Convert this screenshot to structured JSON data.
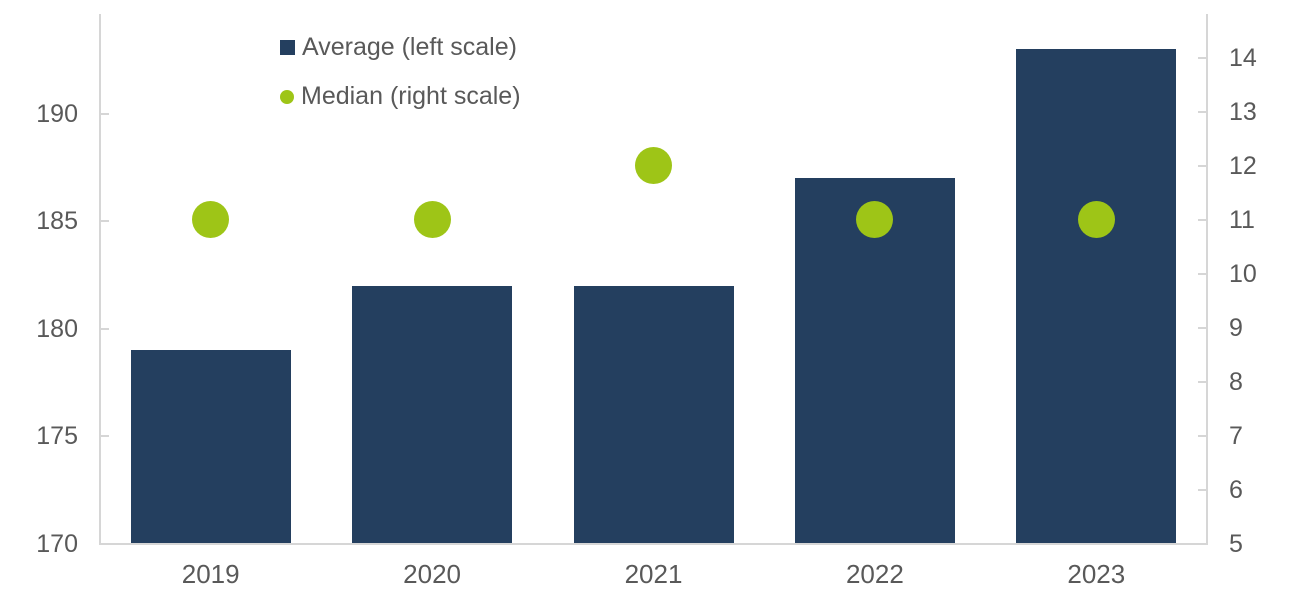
{
  "colors": {
    "bar": "#243F5F",
    "dot": "#9EC517",
    "axis_line": "#D6D6D6",
    "text": "#595959"
  },
  "chart_data": {
    "type": "bar",
    "categories": [
      "2019",
      "2020",
      "2021",
      "2022",
      "2023"
    ],
    "series": [
      {
        "name": "Average (left scale)",
        "type": "bar",
        "axis": "left",
        "color": "#243F5F",
        "values": [
          179,
          182,
          182,
          187,
          193
        ]
      },
      {
        "name": "Median (right scale)",
        "type": "scatter",
        "axis": "right",
        "color": "#9EC517",
        "values": [
          11,
          11,
          12,
          11,
          11
        ]
      }
    ],
    "left_axis": {
      "tick_labels": [
        170,
        175,
        180,
        185,
        190
      ],
      "min": 170,
      "max": 194.65
    },
    "right_axis": {
      "tick_labels": [
        5,
        6,
        7,
        8,
        9,
        10,
        11,
        12,
        13,
        14
      ],
      "min": 5,
      "max": 14.81
    },
    "title": "",
    "xlabel": "",
    "ylabel": "",
    "grid": false,
    "legend_position": "top-left-inside"
  }
}
